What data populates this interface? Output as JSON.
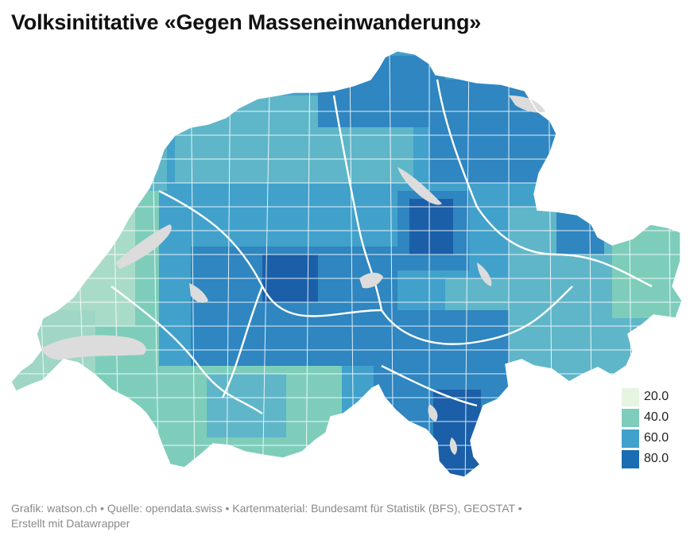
{
  "title": "Volksinititative «Gegen Masseneinwanderung»",
  "legend": [
    {
      "label": "20.0",
      "color": "#e6f5e1"
    },
    {
      "label": "40.0",
      "color": "#7ecdbb"
    },
    {
      "label": "60.0",
      "color": "#41a1cb"
    },
    {
      "label": "80.0",
      "color": "#1a6db3"
    }
  ],
  "colors": {
    "lake": "#dcdcdc",
    "border": "#ffffff",
    "shade_low": "#a9dcc8",
    "shade_mid": "#5fb6c9",
    "shade_high": "#2f86c0",
    "shade_max": "#1b5fa8"
  },
  "footer": {
    "line1": "Grafik: watson.ch • Quelle: opendata.swiss • Kartenmaterial: Bundesamt für Statistik (BFS), GEOSTAT •",
    "line2": "Erstellt mit Datawrapper"
  }
}
